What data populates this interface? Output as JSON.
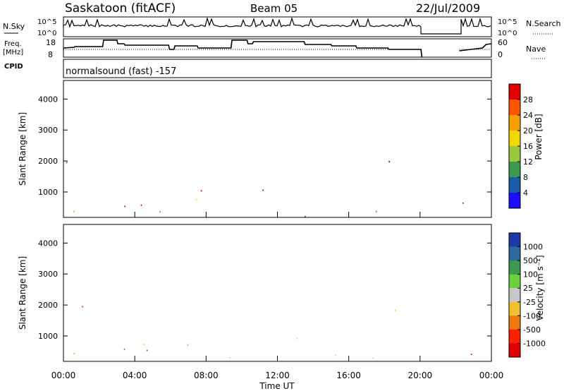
{
  "header": {
    "station": "Saskatoon (fitACF)",
    "beam": "Beam 05",
    "date": "22/Jul/2009"
  },
  "params_panel": {
    "nsky_label": "N.Sky",
    "nsky_ticks": [
      "10^5",
      "10^0"
    ],
    "nsearch_label": "N.Search",
    "nsearch_ticks": [
      "10^5",
      "10^0"
    ],
    "freq_label": "Freq.",
    "freq_unit": "[MHz]",
    "freq_ticks": [
      "18",
      "8"
    ],
    "nave_label": "Nave",
    "nave_ticks": [
      "60",
      "0"
    ],
    "cpid_label": "CPID",
    "cpid_value": "normalsound (fast) -157"
  },
  "chart_data": [
    {
      "type": "heatmap",
      "name": "power",
      "ylabel": "Slant Range [km]",
      "y_ticks": [
        1000,
        2000,
        3000,
        4000
      ],
      "ylim": [
        180,
        4600
      ],
      "xlim_hours": [
        0,
        24
      ],
      "colorbar": {
        "label": "Power [dB]",
        "ticks": [
          "28",
          "24",
          "20",
          "16",
          "12",
          "8",
          "4"
        ],
        "colors": [
          "#e00000",
          "#ff5500",
          "#f5a000",
          "#f0d800",
          "#9ac83c",
          "#3c9a50",
          "#1b5aa6",
          "#1a10ff"
        ]
      }
    },
    {
      "type": "heatmap",
      "name": "velocity",
      "ylabel": "Slant Range [km]",
      "y_ticks": [
        1000,
        2000,
        3000,
        4000
      ],
      "ylim": [
        180,
        4600
      ],
      "xlim_hours": [
        0,
        24
      ],
      "colorbar": {
        "label": "Velocity [m s⁻¹]",
        "ticks": [
          "1000",
          "500",
          "100",
          "25",
          "-25",
          "-100",
          "-500",
          "-1000"
        ],
        "colors": [
          "#1a3aa8",
          "#2d6a9e",
          "#3c9a50",
          "#6ccf3c",
          "#c8c8c8",
          "#f0c030",
          "#f07810",
          "#ff2000",
          "#e00000"
        ]
      }
    }
  ],
  "x_axis": {
    "ticks": [
      "00:00",
      "04:00",
      "08:00",
      "12:00",
      "16:00",
      "20:00",
      "00:00"
    ],
    "label": "Time UT"
  }
}
